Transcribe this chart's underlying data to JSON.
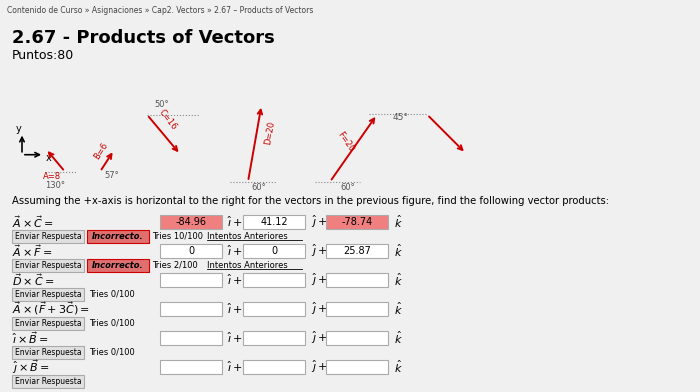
{
  "title": "2.67 - Products of Vectors",
  "subtitle": "Puntos:80",
  "header_text": "Contenido de Curso » Asignaciones » Cap2. Vectors » 2.67 – Products of Vectors",
  "assumption_text": "Assuming the +x-axis is horizontal to the right for the vectors in the previous figure, find the following vector products:",
  "rows": [
    {
      "label": "$\\vec{A} \\times \\vec{C} =$",
      "box1_val": "-84.96",
      "box1_color": "#f08080",
      "box2_val": "41.12",
      "box2_color": "#ffffff",
      "box3_val": "-78.74",
      "box3_color": "#f08080",
      "show_feedback": true,
      "feedback": "Incorrecto.",
      "tries": "Tries 10/100",
      "intentos": "Intentos Anteriores"
    },
    {
      "label": "$\\vec{A} \\times \\vec{F} =$",
      "box1_val": "0",
      "box1_color": "#ffffff",
      "box2_val": "0",
      "box2_color": "#ffffff",
      "box3_val": "25.87",
      "box3_color": "#ffffff",
      "show_feedback": true,
      "feedback": "Incorrecto.",
      "tries": "Tries 2/100",
      "intentos": "Intentos Anteriores"
    },
    {
      "label": "$\\vec{D} \\times \\vec{C} =$",
      "box1_val": "",
      "box1_color": "#ffffff",
      "box2_val": "",
      "box2_color": "#ffffff",
      "box3_val": "",
      "box3_color": "#ffffff",
      "show_feedback": false,
      "feedback": "",
      "tries": "Tries 0/100",
      "intentos": ""
    },
    {
      "label": "$\\vec{A} \\times (\\vec{F}+3\\vec{C}) =$",
      "box1_val": "",
      "box1_color": "#ffffff",
      "box2_val": "",
      "box2_color": "#ffffff",
      "box3_val": "",
      "box3_color": "#ffffff",
      "show_feedback": false,
      "feedback": "",
      "tries": "Tries 0/100",
      "intentos": ""
    },
    {
      "label": "$\\hat{\\imath} \\times \\vec{B} =$",
      "box1_val": "",
      "box1_color": "#ffffff",
      "box2_val": "",
      "box2_color": "#ffffff",
      "box3_val": "",
      "box3_color": "#ffffff",
      "show_feedback": false,
      "feedback": "",
      "tries": "Tries 0/100",
      "intentos": ""
    },
    {
      "label": "$\\hat{\\jmath} \\times \\vec{B} =$",
      "box1_val": "",
      "box1_color": "#ffffff",
      "box2_val": "",
      "box2_color": "#ffffff",
      "box3_val": "",
      "box3_color": "#ffffff",
      "show_feedback": false,
      "feedback": "",
      "tries": "",
      "intentos": ""
    }
  ]
}
